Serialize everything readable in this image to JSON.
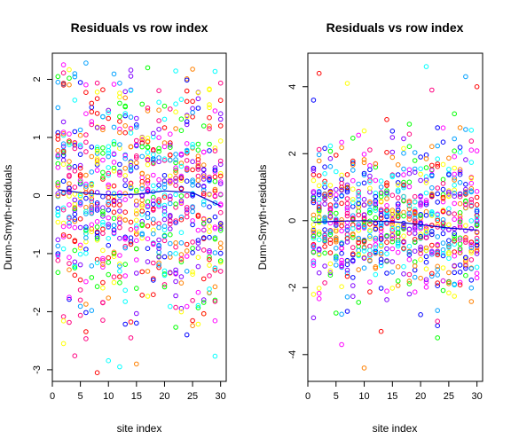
{
  "palette": [
    "#ff0000",
    "#ff00ff",
    "#0000ff",
    "#00ffff",
    "#00ff00",
    "#ffff00",
    "#ff8000",
    "#8000ff",
    "#00a0ff",
    "#ff0080"
  ],
  "trend_color": "#0000cd",
  "chart_data": [
    {
      "type": "scatter",
      "title": "Residuals vs row index",
      "xlabel": "site index",
      "ylabel": "Dunn-Smyth-residuals",
      "xlim": [
        0,
        31
      ],
      "ylim": [
        -3.2,
        2.45
      ],
      "xticks": [
        0,
        5,
        10,
        15,
        20,
        25,
        30
      ],
      "xtick_labels": [
        "0",
        "5",
        "10",
        "15",
        "20",
        "25",
        "30"
      ],
      "yticks": [
        -3,
        -2,
        -1,
        0,
        1,
        2
      ],
      "ytick_labels": [
        "-3",
        "-2",
        "-1",
        "0",
        "1",
        "2"
      ],
      "grid": false,
      "points_per_site": 30,
      "sites": 30,
      "spread_sd": 0.95,
      "seed": 17,
      "outliers": [
        {
          "x": 8,
          "y": -3.05
        },
        {
          "x": 12,
          "y": -2.95
        },
        {
          "x": 15,
          "y": -2.9
        },
        {
          "x": 14,
          "y": -2.45
        },
        {
          "x": 24,
          "y": -2.4
        },
        {
          "x": 2,
          "y": -2.55
        },
        {
          "x": 6,
          "y": 2.28
        },
        {
          "x": 2,
          "y": 2.25
        },
        {
          "x": 17,
          "y": 2.2
        }
      ],
      "trend": {
        "x": [
          1,
          5,
          10,
          15,
          20,
          25,
          30
        ],
        "y": [
          0.1,
          0.05,
          0.01,
          0.02,
          0.08,
          0.05,
          -0.18
        ]
      }
    },
    {
      "type": "scatter",
      "title": "Residuals vs row index",
      "xlabel": "site index",
      "ylabel": "Dunn-Smyth-residuals",
      "xlim": [
        0,
        31
      ],
      "ylim": [
        -4.8,
        5.0
      ],
      "xticks": [
        0,
        5,
        10,
        15,
        20,
        25,
        30
      ],
      "xtick_labels": [
        "0",
        "5",
        "10",
        "15",
        "20",
        "25",
        "30"
      ],
      "yticks": [
        -4,
        -2,
        0,
        2,
        4
      ],
      "ytick_labels": [
        "-4",
        "-2",
        "0",
        "2",
        "4"
      ],
      "grid": false,
      "points_per_site": 30,
      "sites": 30,
      "spread_sd": 1.1,
      "seed": 53,
      "outliers": [
        {
          "x": 2,
          "y": 4.4
        },
        {
          "x": 21,
          "y": 4.6
        },
        {
          "x": 10,
          "y": -4.4
        },
        {
          "x": 22,
          "y": 3.9
        },
        {
          "x": 1,
          "y": 3.6
        },
        {
          "x": 7,
          "y": 4.1
        },
        {
          "x": 28,
          "y": 4.3
        },
        {
          "x": 6,
          "y": -3.7
        },
        {
          "x": 23,
          "y": -3.5
        },
        {
          "x": 1,
          "y": -2.9
        },
        {
          "x": 30,
          "y": 4.0
        }
      ],
      "trend": {
        "x": [
          1,
          5,
          10,
          15,
          20,
          25,
          30
        ],
        "y": [
          -0.05,
          -0.02,
          0.0,
          -0.03,
          -0.12,
          -0.22,
          -0.28
        ]
      }
    }
  ]
}
